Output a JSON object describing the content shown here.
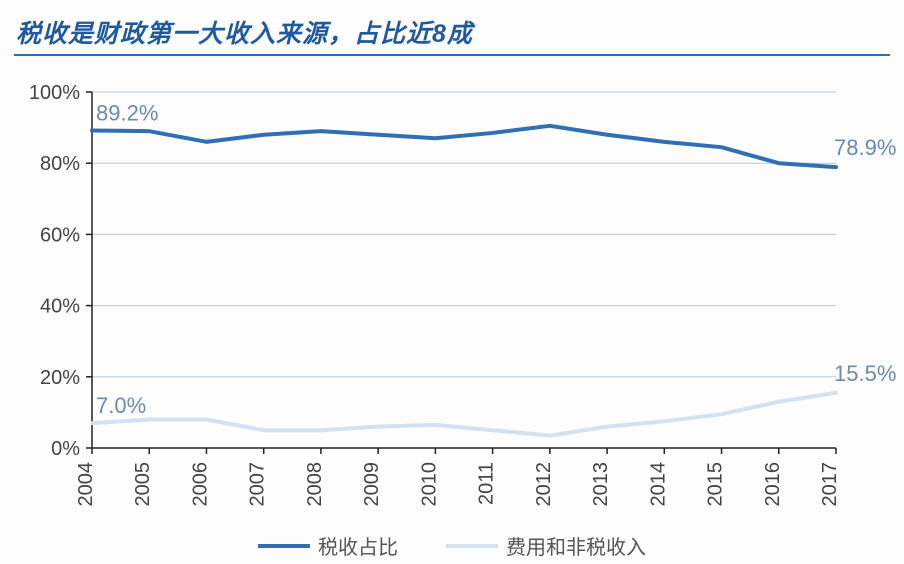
{
  "title": "税收是财政第一大收入来源，占比近8成",
  "chart": {
    "type": "line",
    "background_color": "#fdfdfd",
    "plot_bg": "#fdfdfd",
    "grid_color": "#b9c9d8",
    "axis_color": "#222222",
    "axis_label_color": "#444444",
    "axis_fontsize": 20,
    "ylim": [
      0,
      100
    ],
    "ytick_step": 20,
    "yticks": [
      0,
      20,
      40,
      60,
      80,
      100
    ],
    "ytick_labels": [
      "0%",
      "20%",
      "40%",
      "60%",
      "80%",
      "100%"
    ],
    "x_categories": [
      "2004",
      "2005",
      "2006",
      "2007",
      "2008",
      "2009",
      "2010",
      "2011",
      "2012",
      "2013",
      "2014",
      "2015",
      "2016",
      "2017"
    ],
    "x_label_rotation": 90,
    "series": [
      {
        "name": "税收占比",
        "color": "#2f6fb3",
        "line_width": 4,
        "values": [
          89.2,
          89.0,
          86.0,
          88.0,
          89.0,
          88.0,
          87.0,
          88.5,
          90.5,
          88.0,
          86.0,
          84.5,
          80.0,
          78.9
        ],
        "start_label": "89.2%",
        "end_label": "78.9%",
        "label_color": "#6a8aaf",
        "label_fontsize": 22
      },
      {
        "name": "费用和非税收入",
        "color": "#d3e2ee",
        "line_width": 4,
        "values": [
          7.0,
          8.0,
          8.0,
          5.0,
          5.0,
          6.0,
          6.5,
          5.0,
          3.5,
          6.0,
          7.5,
          9.5,
          13.0,
          15.5
        ],
        "start_label": "7.0%",
        "end_label": "15.5%",
        "label_color": "#6a8aaf",
        "label_fontsize": 22
      }
    ],
    "legend": {
      "position": "bottom",
      "items": [
        {
          "label": "税收占比",
          "color": "#2f6fb3"
        },
        {
          "label": "费用和非税收入",
          "color": "#d3e2ee"
        }
      ]
    }
  }
}
